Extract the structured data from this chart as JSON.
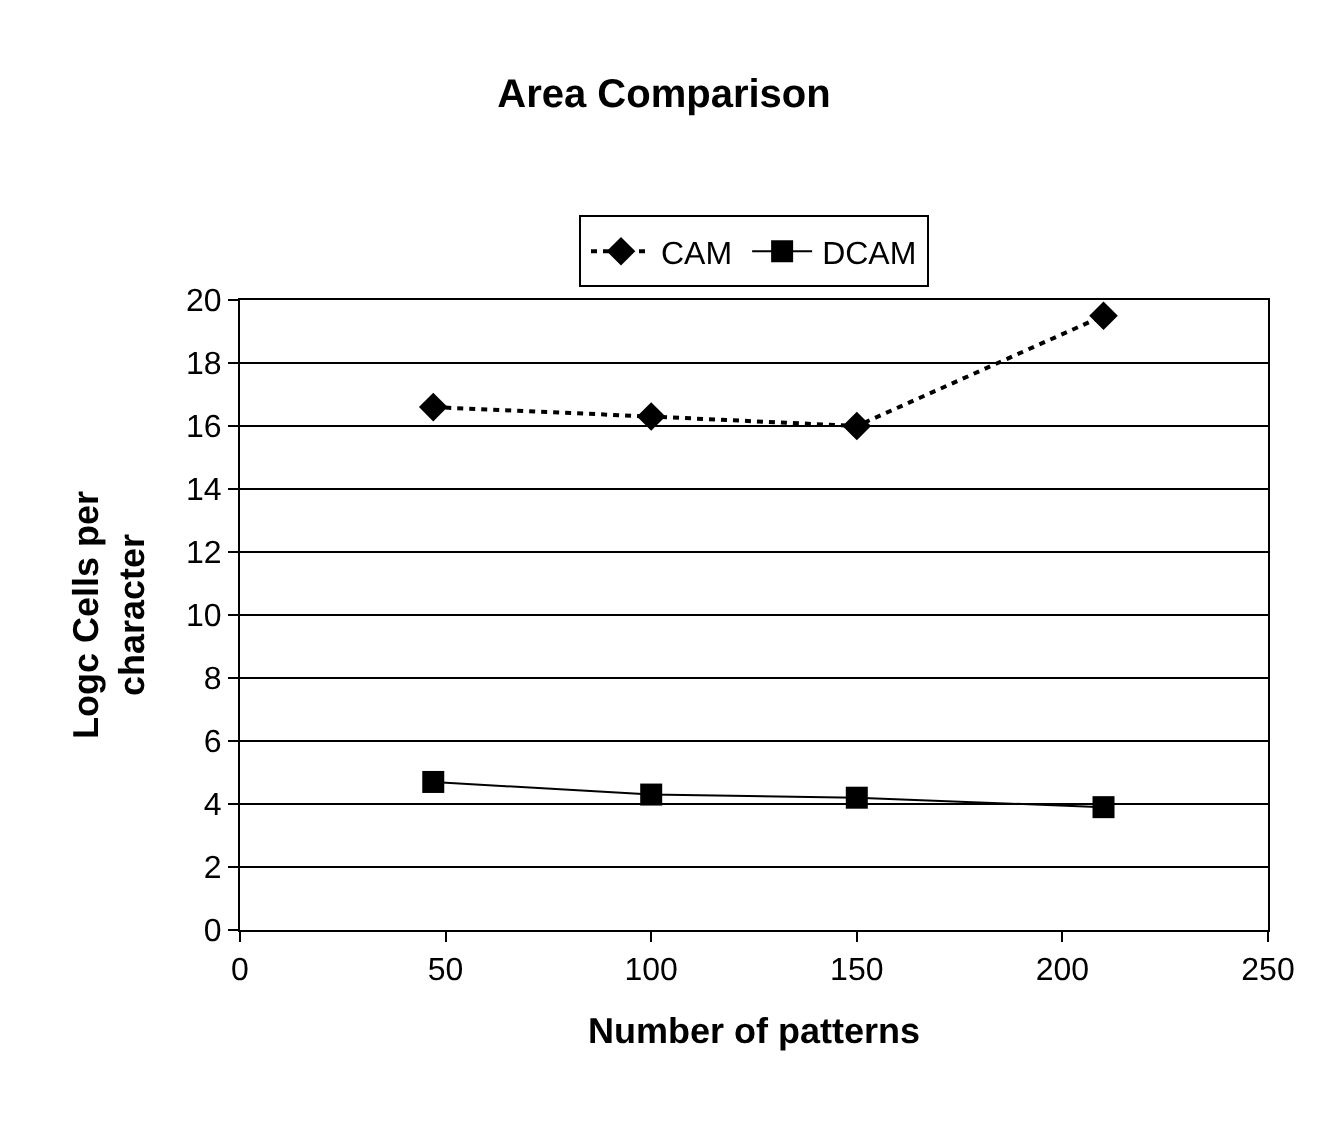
{
  "chart_data": {
    "type": "line",
    "title": "Area Comparison",
    "xlabel": "Number of patterns",
    "ylabel": "Logc Cells per character",
    "x": [
      47,
      100,
      150,
      210
    ],
    "series": [
      {
        "name": "CAM",
        "color": "#000000",
        "values": [
          16.6,
          16.3,
          16.0,
          19.5
        ],
        "marker": "diamond",
        "line_style": "dotted"
      },
      {
        "name": "DCAM",
        "color": "#000000",
        "values": [
          4.7,
          4.3,
          4.2,
          3.9
        ],
        "marker": "square",
        "line_style": "solid"
      }
    ],
    "xlim": [
      0,
      250
    ],
    "xticks": [
      0,
      50,
      100,
      150,
      200,
      250
    ],
    "ylim": [
      0,
      20
    ],
    "yticks": [
      0,
      2,
      4,
      6,
      8,
      10,
      12,
      14,
      16,
      18,
      20
    ],
    "grid": "y",
    "legend": "top"
  }
}
